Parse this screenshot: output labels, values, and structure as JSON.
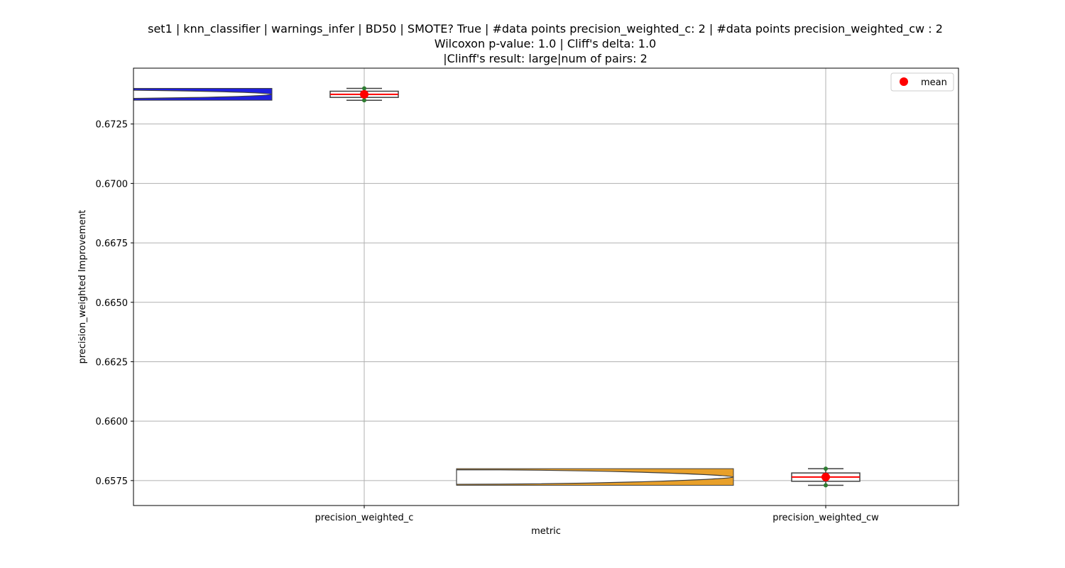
{
  "chart_data": {
    "type": "box",
    "title_lines": [
      "set1 | knn_classifier | warnings_infer | BD50 | SMOTE? True | #data points precision_weighted_c: 2 | #data points precision_weighted_cw : 2",
      "Wilcoxon p-value: 1.0 | Cliff's delta: 1.0",
      "|Clinff's result: large|num of pairs: 2"
    ],
    "xlabel": "metric",
    "ylabel": "precision_weighted Improvement",
    "categories": [
      "precision_weighted_c",
      "precision_weighted_cw"
    ],
    "ylim": [
      0.65645,
      0.67485
    ],
    "yticks": [
      0.6575,
      0.66,
      0.6625,
      0.665,
      0.6675,
      0.67,
      0.6725
    ],
    "ytick_labels": [
      "0.6575",
      "0.6600",
      "0.6625",
      "0.6650",
      "0.6675",
      "0.6700",
      "0.6725"
    ],
    "grid": true,
    "legend": {
      "label": "mean",
      "placement": "top-right"
    },
    "series": [
      {
        "category": "precision_weighted_c",
        "points": [
          0.6735,
          0.674
        ],
        "box": {
          "min": 0.6735,
          "q1": 0.67362,
          "median": 0.67375,
          "q3": 0.67388,
          "max": 0.674
        },
        "mean": 0.67375,
        "density_range": [
          0.6735,
          0.674
        ],
        "density_color": "#1f1fdf"
      },
      {
        "category": "precision_weighted_cw",
        "points": [
          0.6573,
          0.658
        ],
        "box": {
          "min": 0.6573,
          "q1": 0.65747,
          "median": 0.65765,
          "q3": 0.65782,
          "max": 0.658
        },
        "mean": 0.65765,
        "density_range": [
          0.6573,
          0.658
        ],
        "density_color": "#e8a02a"
      }
    ],
    "colors": {
      "box_edge": "#3f3f3f",
      "median": "#ff0000",
      "mean": "#ff0000",
      "point": "#2e7d32",
      "grid": "#b0b0b0"
    }
  }
}
